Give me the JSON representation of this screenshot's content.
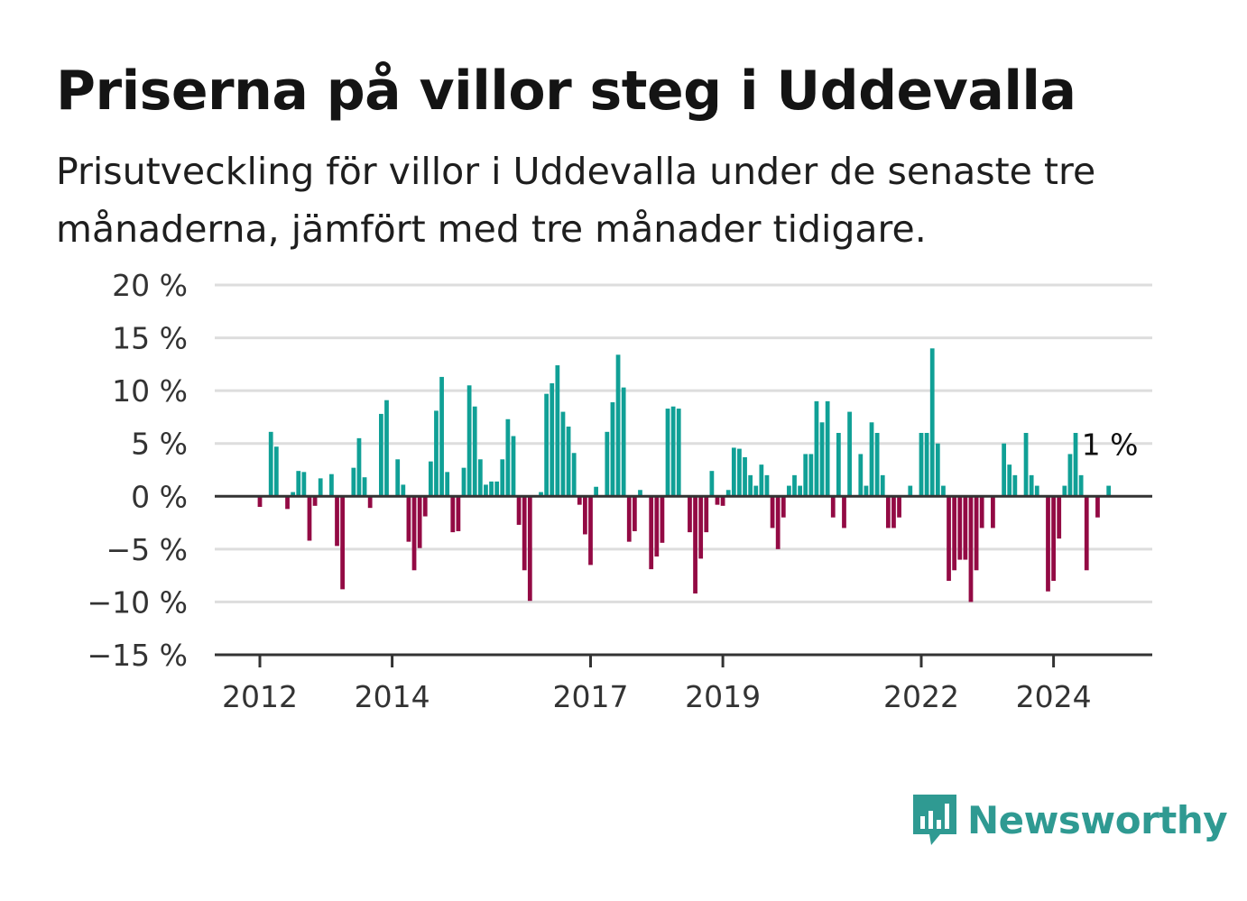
{
  "title": "Priserna på villor steg i Uddevalla",
  "subtitle": "Prisutveckling för villor i Uddevalla under de senaste tre månaderna, jämfört med tre månader tidigare.",
  "brand": {
    "name": "Newsworthy",
    "icon": "newsworthy-logo-icon",
    "color": "#2f9a92"
  },
  "chart_data": {
    "type": "bar",
    "ylim": [
      -15,
      20
    ],
    "yticks": [
      20,
      15,
      10,
      5,
      0,
      -5,
      -10,
      -15
    ],
    "ytick_labels": [
      "20 %",
      "15 %",
      "10 %",
      "5 %",
      "0 %",
      "−5 %",
      "−10 %",
      "−15 %"
    ],
    "xticks": [
      2012,
      2014,
      2017,
      2019,
      2022,
      2024
    ],
    "grid": true,
    "colors": {
      "positive": "#10a096",
      "negative": "#930a44",
      "grid": "#dddddd",
      "axis": "#333333"
    },
    "annotation": {
      "label": "1 %",
      "value": 1
    },
    "series": [
      {
        "values": [
          -1,
          0,
          6.1,
          4.7,
          0,
          -1.2,
          0.4,
          2.4,
          2.3,
          -4.2,
          -0.9,
          1.7,
          0,
          2.1,
          -4.7,
          -8.8,
          0,
          2.7,
          5.5,
          1.8,
          -1.1,
          0,
          7.8,
          9.1,
          0,
          3.5,
          1.1,
          -4.3,
          -7,
          -4.9,
          -1.9,
          3.3,
          8.1,
          11.3,
          2.3,
          -3.4,
          -3.3,
          2.7,
          10.5,
          8.5,
          3.5,
          1.1,
          1.4,
          1.4,
          3.5,
          7.3,
          5.7,
          -2.7,
          -7,
          -9.9,
          0,
          0.4,
          9.7,
          10.7,
          12.4,
          8,
          6.6,
          4.1,
          -0.8,
          -3.6,
          -6.5,
          0.9,
          0,
          6.1,
          8.9,
          13.4,
          10.3,
          -4.3,
          -3.3,
          0.6,
          0,
          -6.9,
          -5.7,
          -4.4,
          8.3,
          8.5,
          8.3,
          0,
          -3.4,
          -9.2,
          -5.9,
          -3.4,
          2.4,
          -0.8,
          -0.9,
          0.6,
          4.6,
          4.5,
          3.7,
          2,
          1,
          3,
          2,
          -3,
          -5,
          -2,
          1,
          2,
          1,
          4,
          4,
          9,
          7,
          9,
          -2,
          6,
          -3,
          8,
          0,
          4,
          1,
          7,
          6,
          2,
          -3,
          -3,
          -2,
          0,
          1,
          0,
          6,
          6,
          14,
          5,
          1,
          -8,
          -7,
          -6,
          -6,
          -10,
          -7,
          -3,
          0,
          -3,
          0,
          5,
          3,
          2,
          0,
          6,
          2,
          1,
          0,
          -9,
          -8,
          -4,
          1,
          4,
          6,
          2,
          -7,
          0,
          -2,
          0,
          1
        ]
      }
    ]
  }
}
